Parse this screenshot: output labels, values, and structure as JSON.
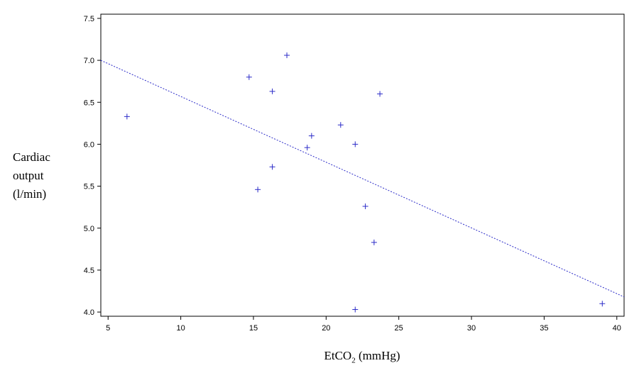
{
  "chart_data": {
    "type": "scatter",
    "title": "",
    "ylabel_lines": [
      "Cardiac",
      "output",
      "(l/min)"
    ],
    "xlabel": {
      "prefix": "EtCO",
      "subscript": "2",
      "suffix": " (mmHg)"
    },
    "xlim": [
      4.5,
      40.5
    ],
    "ylim": [
      3.95,
      7.55
    ],
    "xticks": [
      "5",
      "10",
      "15",
      "20",
      "25",
      "30",
      "35",
      "40"
    ],
    "yticks": [
      "4.0",
      "4.5",
      "5.0",
      "5.5",
      "6.0",
      "6.5",
      "7.0",
      "7.5"
    ],
    "grid": false,
    "series": [
      {
        "marker": "plus",
        "color": "#2b2bc8",
        "points": [
          [
            6.3,
            6.33
          ],
          [
            14.7,
            6.8
          ],
          [
            16.3,
            6.63
          ],
          [
            17.3,
            7.06
          ],
          [
            15.3,
            5.46
          ],
          [
            16.3,
            5.73
          ],
          [
            18.7,
            5.96
          ],
          [
            19.0,
            6.1
          ],
          [
            21.0,
            6.23
          ],
          [
            22.0,
            6.0
          ],
          [
            23.7,
            6.6
          ],
          [
            22.7,
            5.26
          ],
          [
            23.3,
            4.83
          ],
          [
            22.0,
            4.03
          ],
          [
            39.0,
            4.1
          ]
        ]
      }
    ],
    "fit_line": {
      "style": "dashed",
      "color": "#2b2bc8",
      "points": [
        [
          4.5,
          7.0
        ],
        [
          40.5,
          4.18
        ]
      ]
    }
  }
}
